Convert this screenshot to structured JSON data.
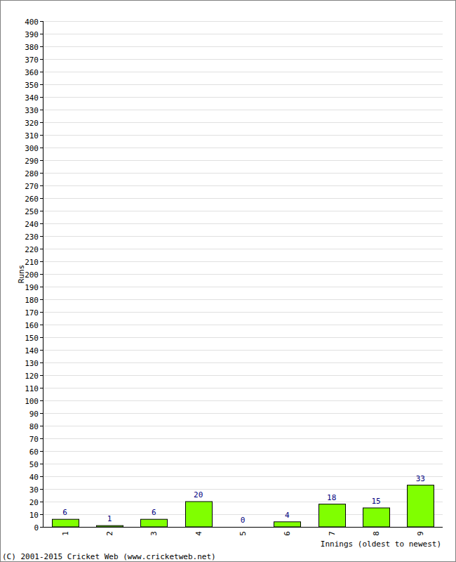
{
  "chart_data": {
    "type": "bar",
    "x_label": "Innings (oldest to newest)",
    "y_label": "Runs",
    "annotations": [
      "(C) 2001-2015 Cricket Web (www.cricketweb.net)"
    ],
    "categories": [
      "1",
      "2",
      "3",
      "4",
      "5",
      "6",
      "7",
      "8",
      "9"
    ],
    "values": [
      6,
      1,
      6,
      20,
      0,
      4,
      18,
      15,
      33
    ],
    "color": "#80ff00",
    "ylim": [
      0,
      400
    ],
    "yticks": [
      0,
      10,
      20,
      30,
      40,
      50,
      60,
      70,
      80,
      90,
      100,
      110,
      120,
      130,
      140,
      150,
      160,
      170,
      180,
      190,
      200,
      210,
      220,
      230,
      240,
      250,
      260,
      270,
      280,
      290,
      300,
      310,
      320,
      330,
      340,
      350,
      360,
      370,
      380,
      390,
      400
    ],
    "grid": true,
    "data_labels": true
  }
}
